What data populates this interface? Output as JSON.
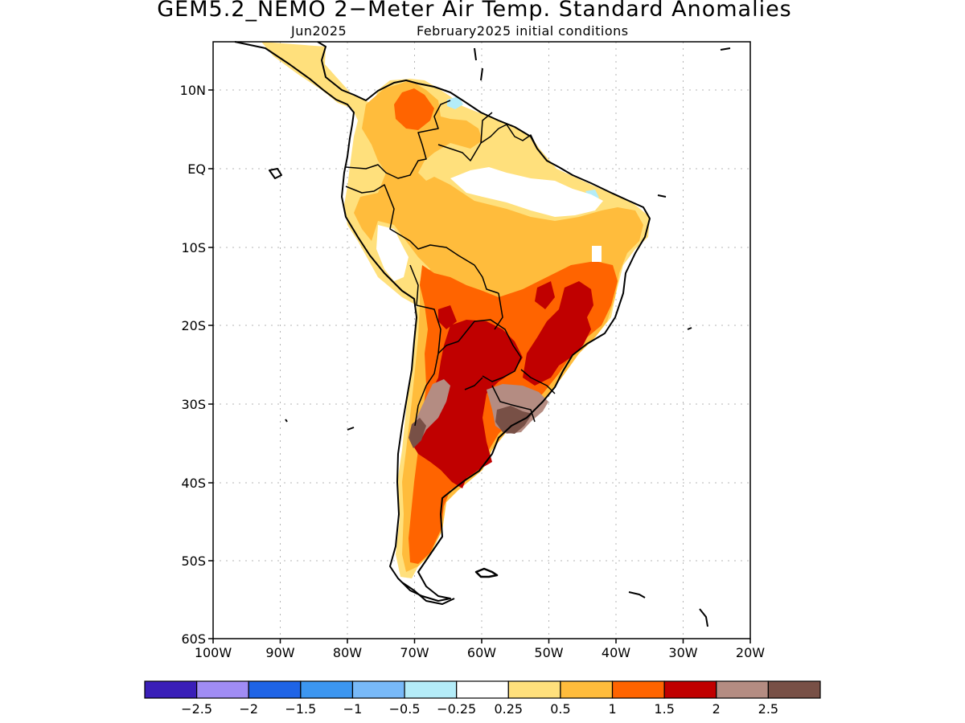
{
  "title": "GEM5.2_NEMO 2−Meter Air Temp. Standard Anomalies",
  "subtitle_left": "Jun2025",
  "subtitle_right": "February2025 initial conditions",
  "lat_ticks": [
    "10N",
    "EQ",
    "10S",
    "20S",
    "30S",
    "40S",
    "50S",
    "60S"
  ],
  "lon_ticks": [
    "100W",
    "90W",
    "80W",
    "70W",
    "60W",
    "50W",
    "40W",
    "30W",
    "20W"
  ],
  "colorbar": {
    "colors": [
      "#3a1fb8",
      "#a08cf4",
      "#1f64e6",
      "#3c96f0",
      "#78b9f8",
      "#b4ecf8",
      "#ffffff",
      "#ffe07c",
      "#ffbc3c",
      "#ff6400",
      "#c00000",
      "#b48c82",
      "#785046"
    ],
    "labels": [
      "−2.5",
      "−2",
      "−1.5",
      "−1",
      "−0.5",
      "−0.25",
      "0.25",
      "0.5",
      "1",
      "1.5",
      "2",
      "2.5"
    ]
  }
}
